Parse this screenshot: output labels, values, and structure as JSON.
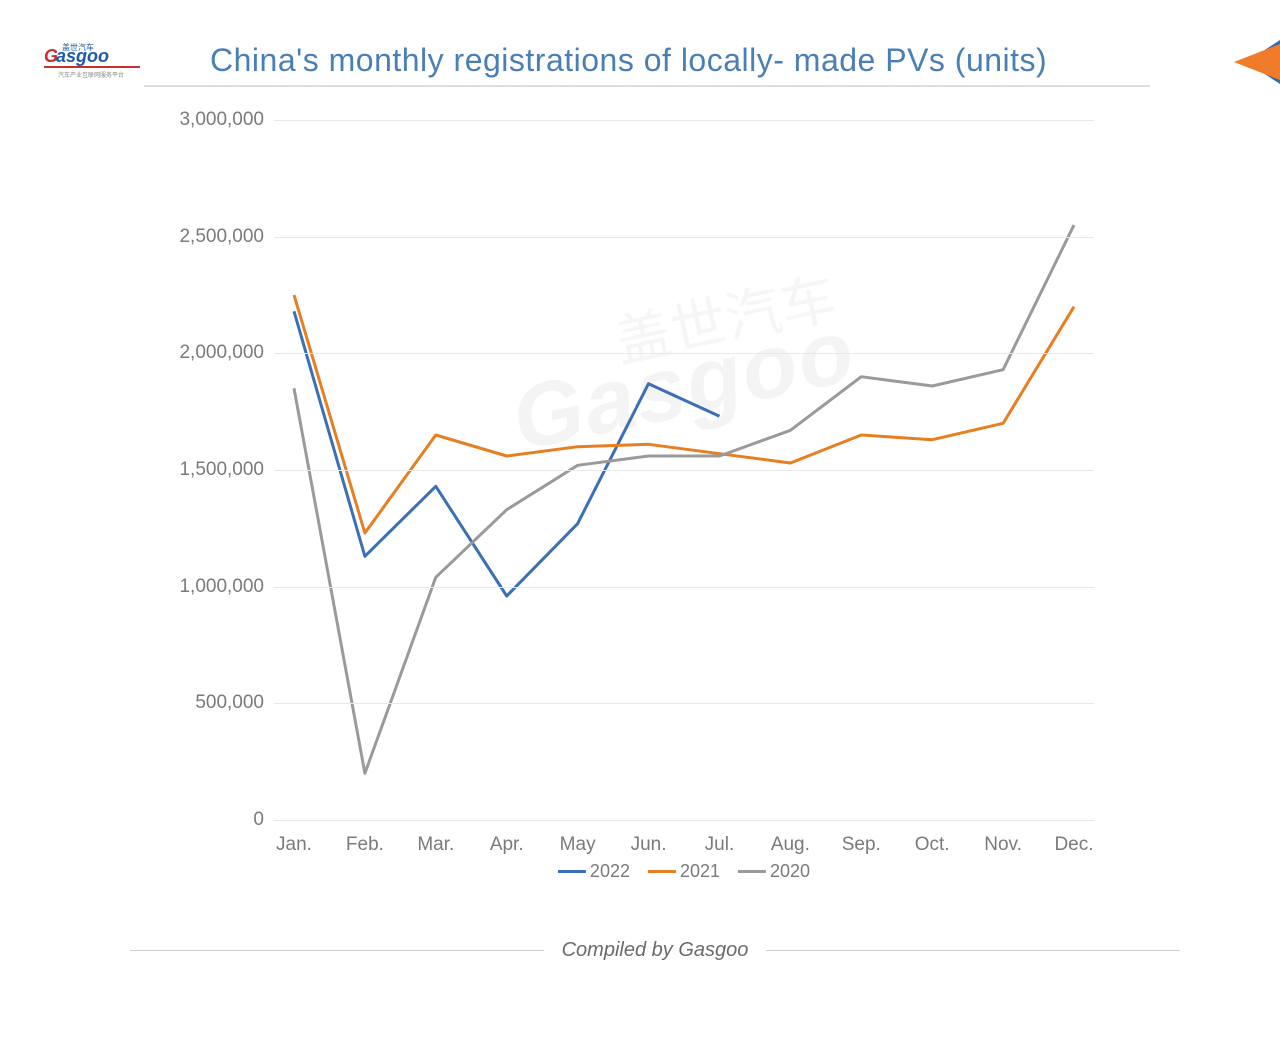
{
  "logo_text": "Gasgoo",
  "logo_cn": "盖世汽车",
  "title": "China's monthly registrations of locally- made PVs (units)",
  "footer": "Compiled by Gasgoo",
  "watermark": "Gasgoo",
  "watermark_cn": "盖世汽车",
  "chart": {
    "type": "line",
    "categories": [
      "Jan.",
      "Feb.",
      "Mar.",
      "Apr.",
      "May",
      "Jun.",
      "Jul.",
      "Aug.",
      "Sep.",
      "Oct.",
      "Nov.",
      "Dec."
    ],
    "y_ticks": [
      0,
      500000,
      1000000,
      1500000,
      2000000,
      2500000,
      3000000
    ],
    "y_tick_labels": [
      "0",
      "500,000",
      "1,000,000",
      "1,500,000",
      "2,000,000",
      "2,500,000",
      "3,000,000"
    ],
    "ylim": [
      0,
      3000000
    ],
    "series": [
      {
        "name": "2022",
        "color": "#3b6fb6",
        "width": 3,
        "data": [
          2180000,
          1130000,
          1430000,
          960000,
          1270000,
          1870000,
          1730000,
          null,
          null,
          null,
          null,
          null
        ]
      },
      {
        "name": "2021",
        "color": "#e67e22",
        "width": 3,
        "data": [
          2250000,
          1230000,
          1650000,
          1560000,
          1600000,
          1610000,
          1570000,
          1530000,
          1650000,
          1630000,
          1700000,
          2200000
        ]
      },
      {
        "name": "2020",
        "color": "#9a9a9a",
        "width": 3,
        "data": [
          1850000,
          200000,
          1040000,
          1330000,
          1520000,
          1560000,
          1560000,
          1670000,
          1900000,
          1860000,
          1930000,
          2550000
        ]
      }
    ],
    "grid_color": "#e8e8e8",
    "axis_font_color": "#7a7a7a",
    "axis_font_size": 19,
    "title_color": "#4a7fb5",
    "title_fontsize": 32,
    "background_color": "#ffffff"
  },
  "arrow_colors": {
    "back": "#3a6aa8",
    "front": "#f07b2a"
  }
}
